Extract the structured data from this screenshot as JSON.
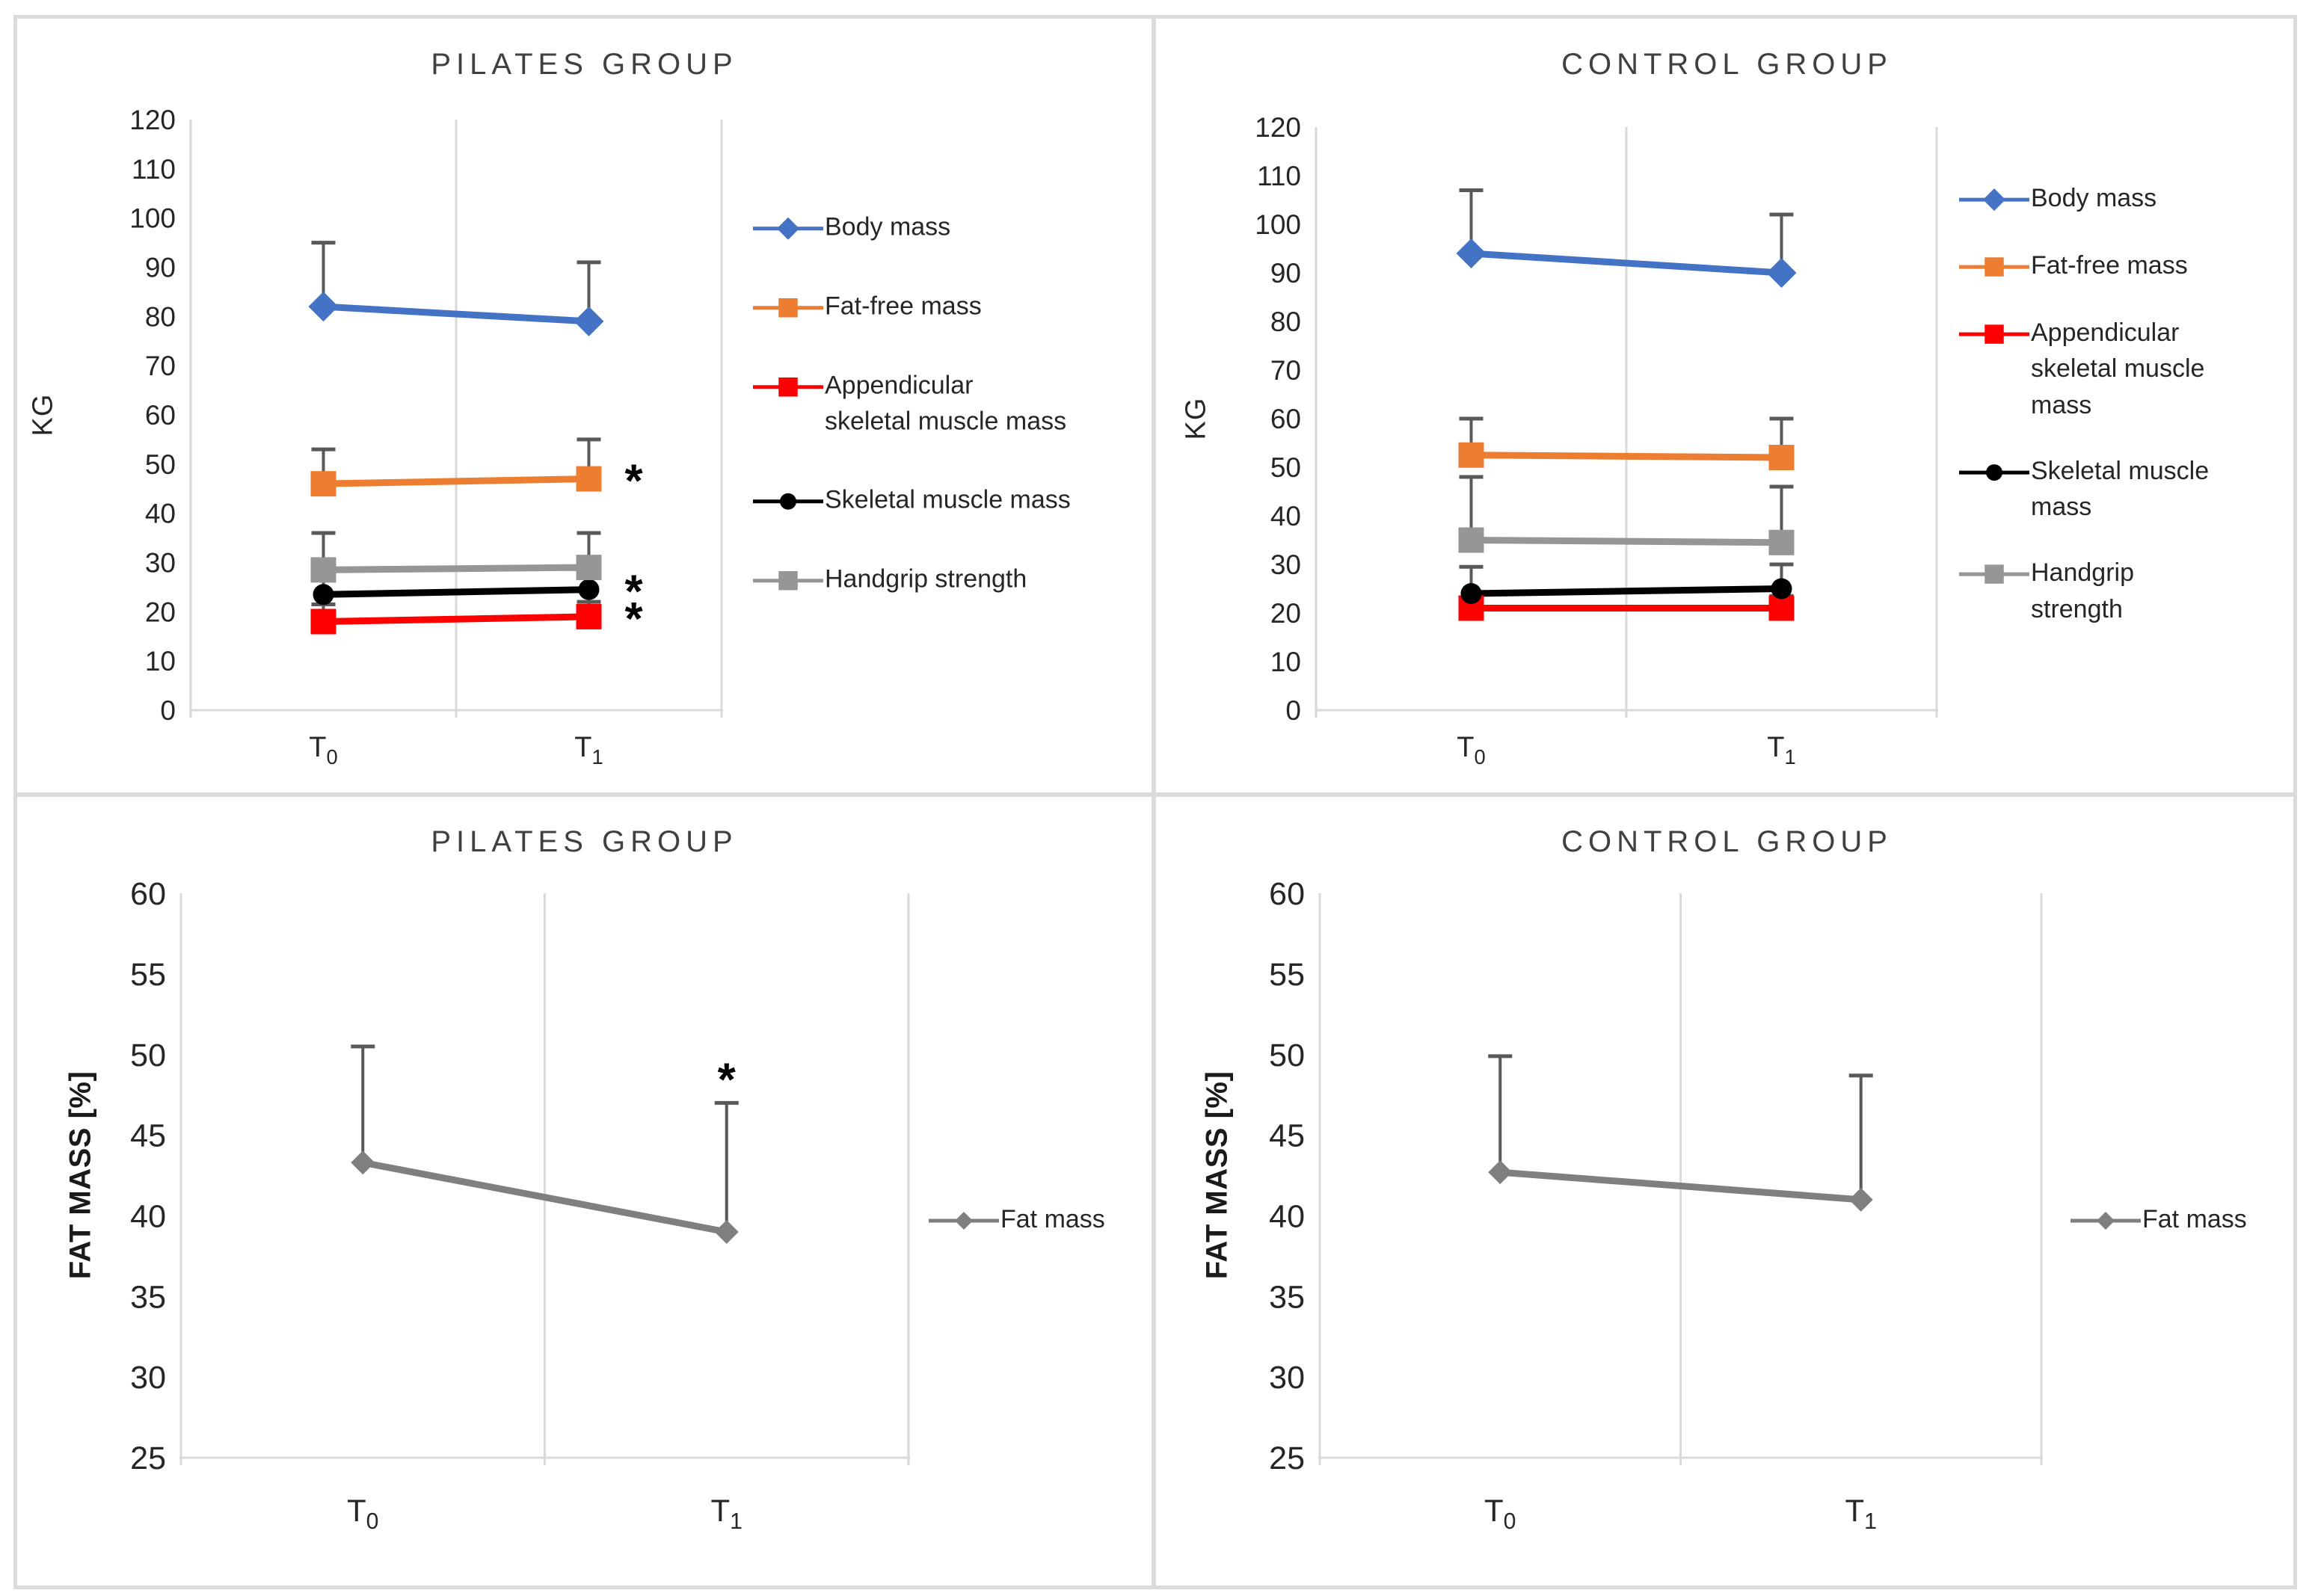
{
  "figure": {
    "description": "Four-panel line chart figure comparing Pilates and Control groups at T0 and T1"
  },
  "colors": {
    "body_mass": "#4472C4",
    "fat_free_mass": "#ED7D31",
    "appendicular_skeletal_muscle_mass": "#FF0000",
    "skeletal_muscle_mass": "#000000",
    "handgrip_strength": "#969696",
    "fat_mass": "#7F7F7F",
    "error_bar": "#595959",
    "axis_line": "#D9D9D9",
    "tick_text": "#262626",
    "title_text": "#404040",
    "panel_border": "#DBDBDB",
    "significance": "#000000"
  },
  "chart_data": [
    {
      "type": "line",
      "title": "PILATES GROUP",
      "ylabel": "KG",
      "ylim": [
        0,
        120
      ],
      "ystep": 10,
      "grid": "vertical-category-gridlines",
      "legend_position": "right",
      "x_categories": [
        {
          "base": "T",
          "sub": "0"
        },
        {
          "base": "T",
          "sub": "1"
        }
      ],
      "sig_symbol": "*",
      "sig_placement": "right",
      "series": [
        {
          "name": "Body mass",
          "legend_lines": [
            "Body mass"
          ],
          "color": "#4472C4",
          "marker": "diamond",
          "msize": 20,
          "values": [
            82,
            79
          ],
          "err_top": [
            95,
            91
          ],
          "sig": [
            false,
            false
          ]
        },
        {
          "name": "Fat-free mass",
          "legend_lines": [
            "Fat-free mass"
          ],
          "color": "#ED7D31",
          "marker": "square",
          "msize": 17,
          "values": [
            46,
            47
          ],
          "err_top": [
            53,
            55
          ],
          "sig": [
            false,
            true
          ]
        },
        {
          "name": "Appendicular skeletal muscle mass",
          "legend_lines": [
            "Appendicular",
            "skeletal muscle mass"
          ],
          "color": "#FF0000",
          "marker": "square",
          "msize": 17,
          "values": [
            18,
            19
          ],
          "err_top": [
            21.5,
            22
          ],
          "sig": [
            false,
            true
          ]
        },
        {
          "name": "Skeletal muscle mass",
          "legend_lines": [
            "Skeletal muscle mass"
          ],
          "color": "#000000",
          "marker": "circle",
          "msize": 14,
          "values": [
            23.5,
            24.5
          ],
          "err_top": [
            26.5,
            27.5
          ],
          "sig": [
            false,
            true
          ]
        },
        {
          "name": "Handgrip strength",
          "legend_lines": [
            "Handgrip strength"
          ],
          "color": "#969696",
          "marker": "square",
          "msize": 17,
          "values": [
            28.5,
            29
          ],
          "err_top": [
            36,
            36
          ],
          "sig": [
            false,
            false
          ]
        }
      ]
    },
    {
      "type": "line",
      "title": "CONTROL GROUP",
      "ylabel": "KG",
      "ylim": [
        0,
        120
      ],
      "ystep": 10,
      "grid": "vertical-category-gridlines",
      "legend_position": "right",
      "x_categories": [
        {
          "base": "T",
          "sub": "0"
        },
        {
          "base": "T",
          "sub": "1"
        }
      ],
      "sig_symbol": "*",
      "sig_placement": "right",
      "series": [
        {
          "name": "Body mass",
          "legend_lines": [
            "Body mass"
          ],
          "color": "#4472C4",
          "marker": "diamond",
          "msize": 20,
          "values": [
            94,
            90
          ],
          "err_top": [
            107,
            102
          ],
          "sig": [
            false,
            false
          ]
        },
        {
          "name": "Fat-free mass",
          "legend_lines": [
            "Fat-free mass"
          ],
          "color": "#ED7D31",
          "marker": "square",
          "msize": 17,
          "values": [
            52.5,
            52
          ],
          "err_top": [
            60,
            60
          ],
          "sig": [
            false,
            false
          ]
        },
        {
          "name": "Appendicular skeletal muscle mass",
          "legend_lines": [
            "Appendicular",
            "skeletal muscle",
            "mass"
          ],
          "color": "#FF0000",
          "marker": "square",
          "msize": 17,
          "values": [
            21,
            21
          ],
          "err_top": [
            23,
            23.5
          ],
          "sig": [
            false,
            false
          ]
        },
        {
          "name": "Skeletal muscle mass",
          "legend_lines": [
            "Skeletal muscle",
            "mass"
          ],
          "color": "#000000",
          "marker": "circle",
          "msize": 14,
          "values": [
            24,
            25
          ],
          "err_top": [
            29.5,
            30
          ],
          "sig": [
            false,
            false
          ]
        },
        {
          "name": "Handgrip strength",
          "legend_lines": [
            "Handgrip",
            "strength"
          ],
          "color": "#969696",
          "marker": "square",
          "msize": 17,
          "values": [
            35,
            34.5
          ],
          "err_top": [
            48,
            46
          ],
          "sig": [
            false,
            false
          ]
        }
      ]
    },
    {
      "type": "line",
      "title": "PILATES GROUP",
      "ylabel": "FAT MASS [%]",
      "ylim": [
        25,
        60
      ],
      "ystep": 5,
      "grid": "vertical-category-gridlines",
      "legend_position": "right",
      "x_categories": [
        {
          "base": "T",
          "sub": "0"
        },
        {
          "base": "T",
          "sub": "1"
        }
      ],
      "sig_symbol": "*",
      "sig_placement": "above_error",
      "series": [
        {
          "name": "Fat mass",
          "legend_lines": [
            "Fat mass"
          ],
          "color": "#7F7F7F",
          "marker": "diamond",
          "msize": 16,
          "values": [
            43.3,
            39
          ],
          "err_top": [
            50.5,
            47
          ],
          "sig": [
            false,
            true
          ]
        }
      ]
    },
    {
      "type": "line",
      "title": "CONTROL GROUP",
      "ylabel": "FAT MASS [%]",
      "ylim": [
        25,
        60
      ],
      "ystep": 5,
      "grid": "vertical-category-gridlines",
      "legend_position": "right",
      "x_categories": [
        {
          "base": "T",
          "sub": "0"
        },
        {
          "base": "T",
          "sub": "1"
        }
      ],
      "sig_symbol": "*",
      "sig_placement": "above_error",
      "series": [
        {
          "name": "Fat mass",
          "legend_lines": [
            "Fat mass"
          ],
          "color": "#7F7F7F",
          "marker": "diamond",
          "msize": 16,
          "values": [
            42.7,
            41
          ],
          "err_top": [
            49.9,
            48.7
          ],
          "sig": [
            false,
            false
          ]
        }
      ]
    }
  ]
}
